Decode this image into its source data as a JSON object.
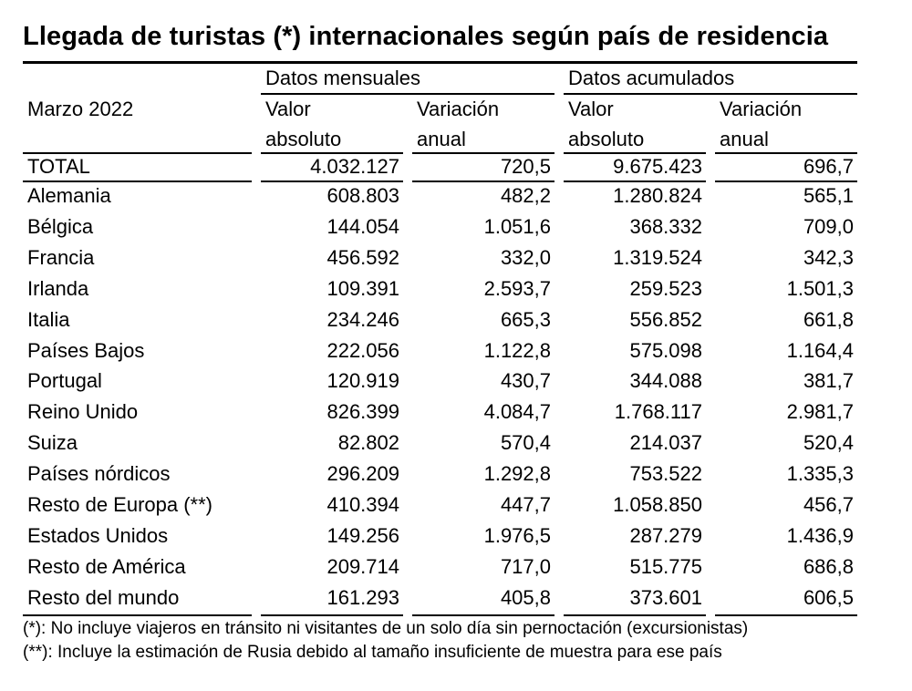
{
  "title": "Llegada de turistas (*) internacionales según país de residencia",
  "header": {
    "period": "Marzo 2022",
    "group_monthly": "Datos mensuales",
    "group_cumulative": "Datos acumulados",
    "col_value_l1": "Valor",
    "col_value_l2": "absoluto",
    "col_var_l1": "Variación",
    "col_var_l2": "anual"
  },
  "total": {
    "name": "TOTAL",
    "m_val": "4.032.127",
    "m_var": "720,5",
    "a_val": "9.675.423",
    "a_var": "696,7"
  },
  "rows": [
    {
      "name": "Alemania",
      "m_val": "608.803",
      "m_var": "482,2",
      "a_val": "1.280.824",
      "a_var": "565,1"
    },
    {
      "name": "Bélgica",
      "m_val": "144.054",
      "m_var": "1.051,6",
      "a_val": "368.332",
      "a_var": "709,0"
    },
    {
      "name": "Francia",
      "m_val": "456.592",
      "m_var": "332,0",
      "a_val": "1.319.524",
      "a_var": "342,3"
    },
    {
      "name": "Irlanda",
      "m_val": "109.391",
      "m_var": "2.593,7",
      "a_val": "259.523",
      "a_var": "1.501,3"
    },
    {
      "name": "Italia",
      "m_val": "234.246",
      "m_var": "665,3",
      "a_val": "556.852",
      "a_var": "661,8"
    },
    {
      "name": "Países Bajos",
      "m_val": "222.056",
      "m_var": "1.122,8",
      "a_val": "575.098",
      "a_var": "1.164,4"
    },
    {
      "name": "Portugal",
      "m_val": "120.919",
      "m_var": "430,7",
      "a_val": "344.088",
      "a_var": "381,7"
    },
    {
      "name": "Reino Unido",
      "m_val": "826.399",
      "m_var": "4.084,7",
      "a_val": "1.768.117",
      "a_var": "2.981,7"
    },
    {
      "name": "Suiza",
      "m_val": "82.802",
      "m_var": "570,4",
      "a_val": "214.037",
      "a_var": "520,4"
    },
    {
      "name": "Países nórdicos",
      "m_val": "296.209",
      "m_var": "1.292,8",
      "a_val": "753.522",
      "a_var": "1.335,3"
    },
    {
      "name": "Resto de Europa (**)",
      "m_val": "410.394",
      "m_var": "447,7",
      "a_val": "1.058.850",
      "a_var": "456,7"
    },
    {
      "name": "Estados Unidos",
      "m_val": "149.256",
      "m_var": "1.976,5",
      "a_val": "287.279",
      "a_var": "1.436,9"
    },
    {
      "name": "Resto de América",
      "m_val": "209.714",
      "m_var": "717,0",
      "a_val": "515.775",
      "a_var": "686,8"
    },
    {
      "name": "Resto del mundo",
      "m_val": "161.293",
      "m_var": "405,8",
      "a_val": "373.601",
      "a_var": "606,5"
    }
  ],
  "footnotes": [
    "(*): No incluye viajeros en tránsito ni visitantes de un solo día sin pernoctación (excursionistas)",
    "(**): Incluye la estimación de Rusia debido al tamaño insuficiente de muestra para ese país"
  ]
}
